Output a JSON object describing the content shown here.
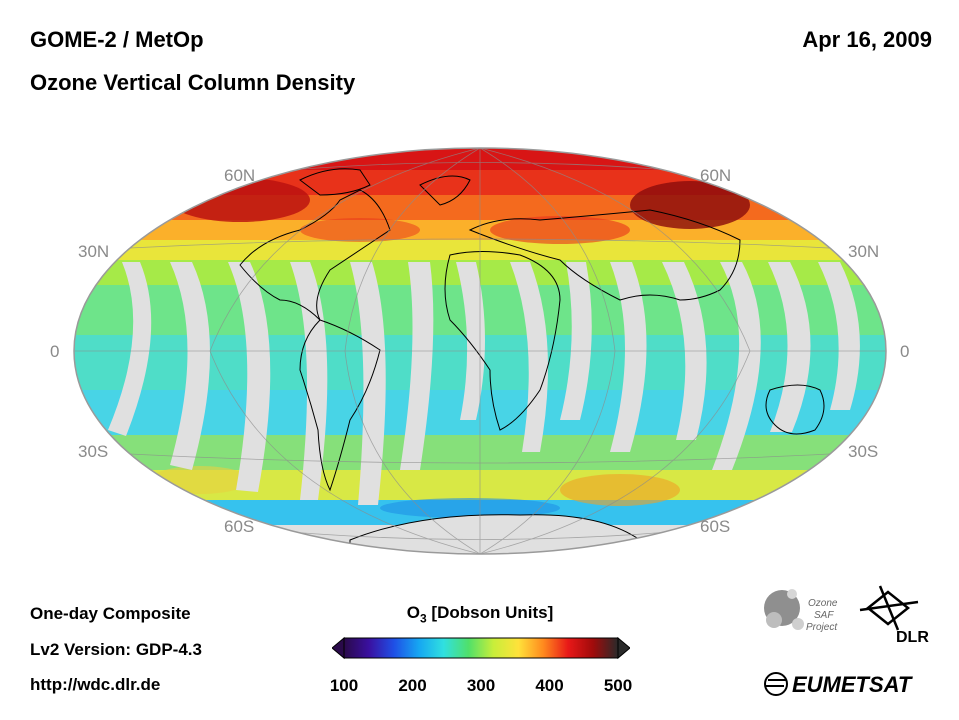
{
  "header": {
    "instrument": "GOME-2 / MetOp",
    "product": "Ozone Vertical Column Density",
    "date": "Apr 16, 2009"
  },
  "map": {
    "projection": "Hammer-Aitoff",
    "missing_color": "#e0e0e0",
    "lat_labels": {
      "n60": "60N",
      "n30": "30N",
      "eq": "0",
      "s30": "30S",
      "s60": "60S"
    }
  },
  "footer": {
    "composite": "One-day Composite",
    "version": "Lv2 Version: GDP-4.3",
    "url": "http://wdc.dlr.de"
  },
  "colorbar": {
    "title_main": "O",
    "title_sub": "3",
    "title_rest": " [Dobson Units]",
    "ticks": [
      "100",
      "200",
      "300",
      "400",
      "500"
    ],
    "range": [
      100,
      500
    ],
    "colors": [
      "#2a0a4a",
      "#3a10a0",
      "#1f4fe6",
      "#16a6f2",
      "#30e0e0",
      "#50e06a",
      "#c8ee3a",
      "#ffe23a",
      "#ff8a1e",
      "#e81818",
      "#a00b0b",
      "#2a2a2a"
    ]
  },
  "logos": {
    "ozone_saf_line1": "Ozone",
    "ozone_saf_line2": "SAF",
    "ozone_saf_line3": "Project",
    "dlr": "DLR",
    "eumetsat": "EUMETSAT"
  }
}
